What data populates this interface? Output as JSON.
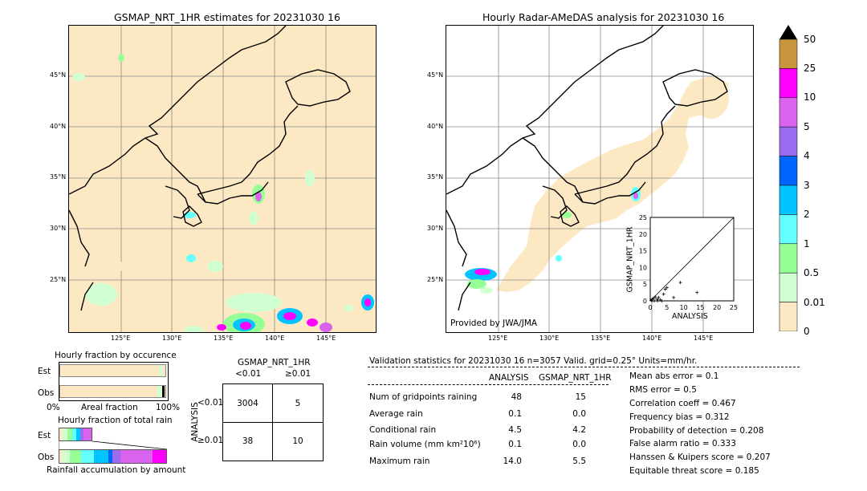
{
  "left_map": {
    "title": "GSMAP_NRT_1HR estimates for 20231030 16",
    "lat_labels": [
      "45°N",
      "40°N",
      "35°N",
      "30°N",
      "25°N"
    ],
    "lon_labels": [
      "125°E",
      "130°E",
      "135°E",
      "140°E",
      "145°E"
    ]
  },
  "right_map": {
    "title": "Hourly Radar-AMeDAS analysis for 20231030 16",
    "lat_labels": [
      "45°N",
      "40°N",
      "35°N",
      "30°N",
      "25°N"
    ],
    "lon_labels": [
      "125°E",
      "130°E",
      "135°E",
      "140°E",
      "145°E"
    ],
    "credit": "Provided by JWA/JMA"
  },
  "scatter": {
    "ylabel": "GSMAP_NRT_1HR",
    "xlabel": "ANALYSIS",
    "ticks": [
      "0",
      "5",
      "10",
      "15",
      "20",
      "25"
    ]
  },
  "colorbar": {
    "labels": [
      "50",
      "25",
      "10",
      "5",
      "4",
      "3",
      "2",
      "1",
      "0.5",
      "0.01",
      "0"
    ],
    "colors": [
      "#c8963c",
      "#ff00ff",
      "#da63ee",
      "#9b6cf2",
      "#0064ff",
      "#00c3ff",
      "#64ffff",
      "#96ff96",
      "#d2ffd2",
      "#fce9c3"
    ]
  },
  "occurrence": {
    "title": "Hourly fraction by occurence",
    "est_label": "Est",
    "obs_label": "Obs",
    "axis_left": "0%",
    "axis_mid": "Areal fraction",
    "axis_right": "100%"
  },
  "total_rain": {
    "title": "Hourly fraction of total rain",
    "est_label": "Est",
    "obs_label": "Obs",
    "footer": "Rainfall accumulation by amount"
  },
  "contingency": {
    "title": "GSMAP_NRT_1HR",
    "col1": "<0.01",
    "col2": "≥0.01",
    "side_label": "ANALYSIS",
    "row1": "<0.01",
    "row2": "≥0.01",
    "cells": [
      "3004",
      "5",
      "38",
      "10"
    ]
  },
  "validation": {
    "header": "Validation statistics for 20231030 16  n=3057 Valid. grid=0.25° Units=mm/hr.",
    "col_analysis": "ANALYSIS",
    "col_gsmap": "GSMAP_NRT_1HR",
    "rows": [
      {
        "label": "Num of gridpoints raining",
        "analysis": "48",
        "gsmap": "15"
      },
      {
        "label": "Average rain",
        "analysis": "0.1",
        "gsmap": "0.0"
      },
      {
        "label": "Conditional rain",
        "analysis": "4.5",
        "gsmap": "4.2"
      },
      {
        "label": "Rain volume (mm km²10⁶)",
        "analysis": "0.1",
        "gsmap": "0.0"
      },
      {
        "label": "Maximum rain",
        "analysis": "14.0",
        "gsmap": "5.5"
      }
    ],
    "scores": [
      "Mean abs error =    0.1",
      "RMS error =    0.5",
      "Correlation coeff =  0.467",
      "Frequency bias =  0.312",
      "Probability of detection =  0.208",
      "False alarm ratio =  0.333",
      "Hanssen & Kuipers score =  0.207",
      "Equitable threat score =  0.185"
    ]
  },
  "chart_data": {
    "type": "scatter",
    "title": "",
    "xlabel": "ANALYSIS",
    "ylabel": "GSMAP_NRT_1HR",
    "xlim": [
      0,
      25
    ],
    "ylim": [
      0,
      25
    ],
    "points": [
      [
        0.3,
        0.2
      ],
      [
        0.6,
        0.5
      ],
      [
        1.0,
        0.8
      ],
      [
        1.5,
        1.2
      ],
      [
        2.0,
        0.5
      ],
      [
        2.5,
        1.0
      ],
      [
        3.0,
        0.3
      ],
      [
        4.0,
        2.0
      ],
      [
        4.5,
        3.5
      ],
      [
        5.0,
        4.0
      ],
      [
        7.0,
        1.0
      ],
      [
        9.0,
        5.5
      ],
      [
        14.0,
        2.5
      ],
      [
        0.5,
        0.0
      ],
      [
        1.2,
        0.0
      ],
      [
        2.2,
        0.0
      ],
      [
        3.5,
        0.0
      ]
    ]
  }
}
